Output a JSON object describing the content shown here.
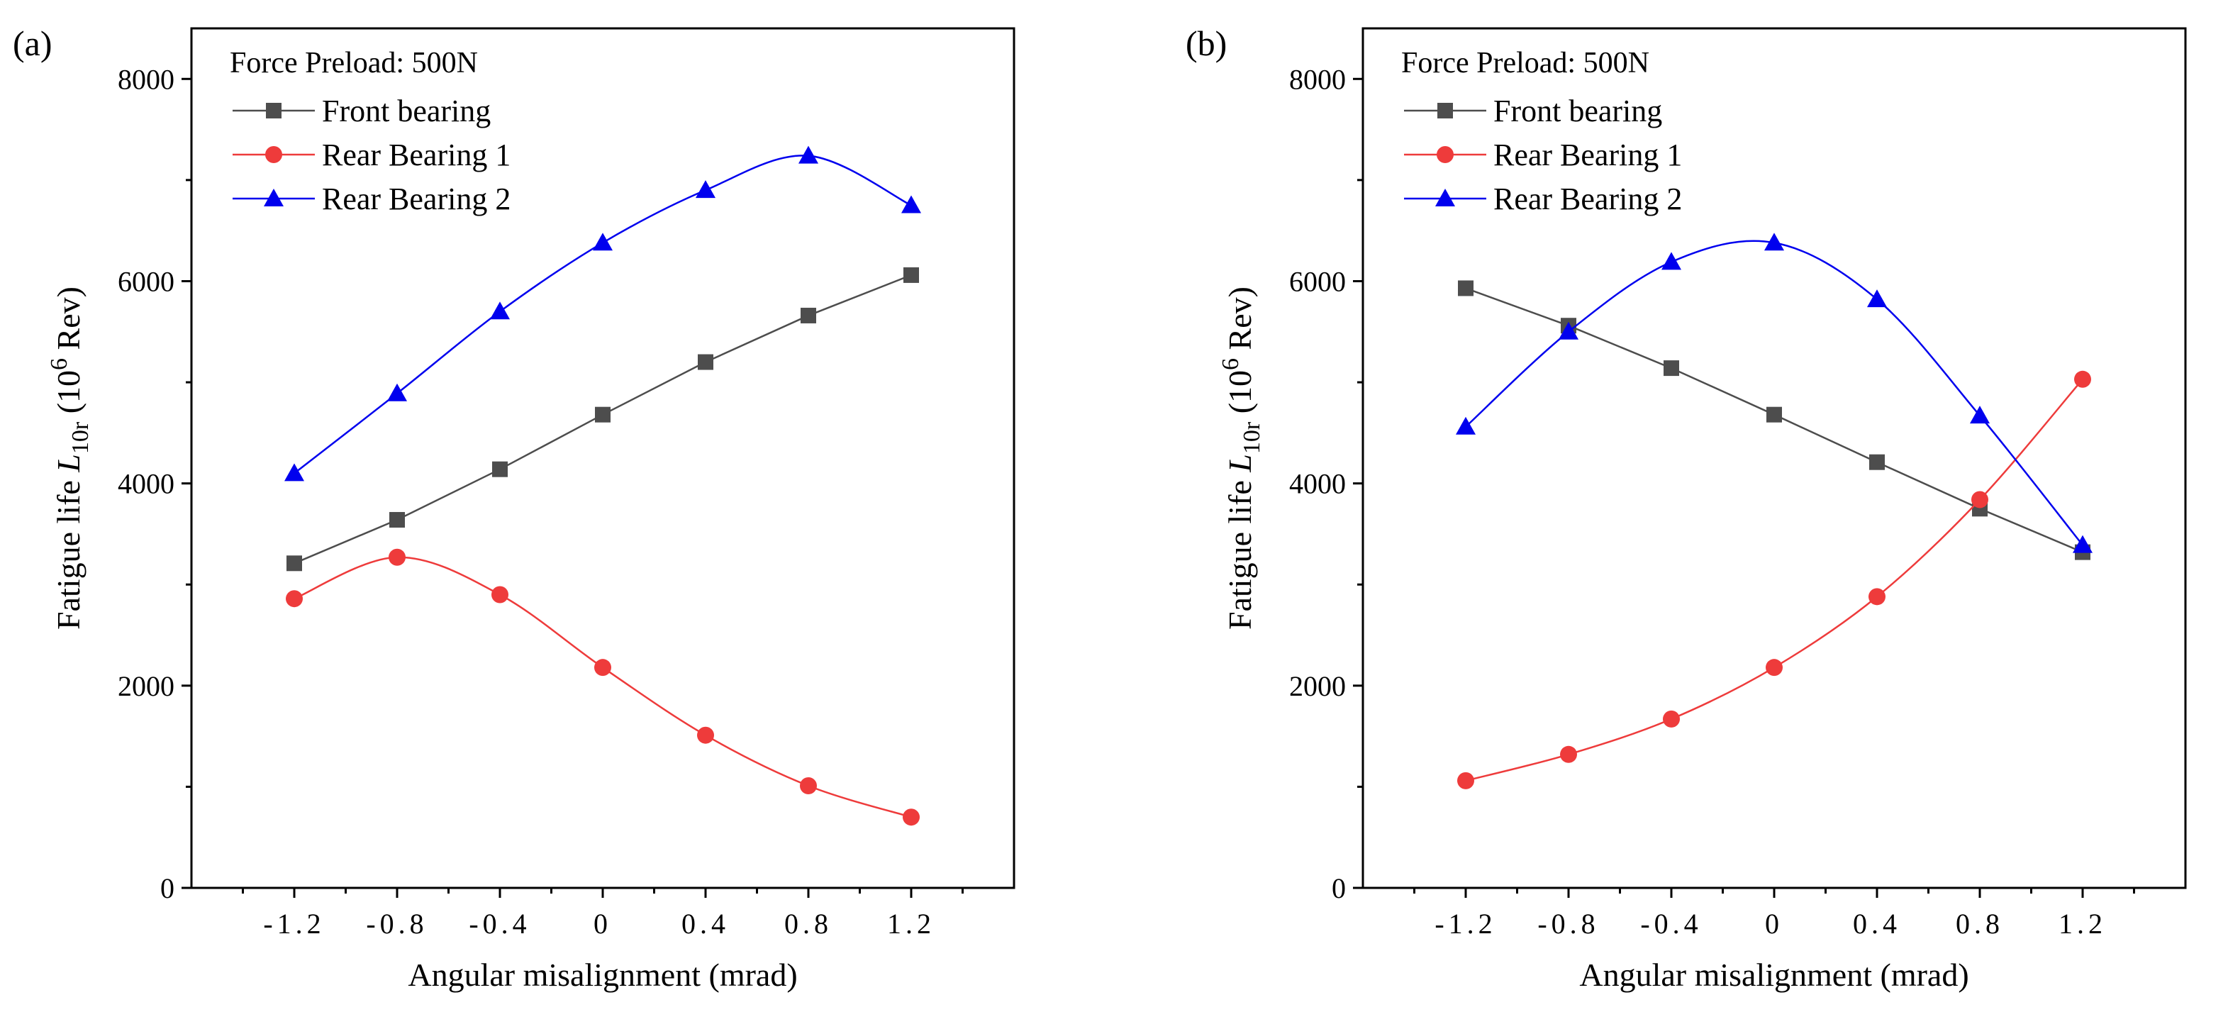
{
  "chart_data": [
    {
      "type": "line",
      "panel_tag": "(a)",
      "legend_title": "Force Preload: 500N",
      "xlabel": "Angular misalignment (mrad)",
      "ylabel": {
        "prefix": "Fatigue life ",
        "symbol": "L",
        "symbol_sub": "10r",
        "unit_open": " (10",
        "unit_sup": "6",
        "unit_close": " Rev)"
      },
      "xlim": [
        -1.6,
        1.6
      ],
      "ylim": [
        0,
        8500
      ],
      "x_ticks": [
        -1.2,
        -0.8,
        -0.4,
        0,
        0.4,
        0.8,
        1.2
      ],
      "x_tick_labels": [
        "-1.2",
        "-0.8",
        "-0.4",
        "0",
        "0.4",
        "0.8",
        "1.2"
      ],
      "y_ticks": [
        0,
        2000,
        4000,
        6000,
        8000
      ],
      "y_tick_labels": [
        "0",
        "2000",
        "4000",
        "6000",
        "8000"
      ],
      "grid": false,
      "legend_position": "top-left",
      "x": [
        -1.2,
        -0.8,
        -0.4,
        0,
        0.4,
        0.8,
        1.2
      ],
      "series": [
        {
          "name": "Front bearing",
          "color": "#4d4d4d",
          "marker": "square",
          "smooth": false,
          "values": [
            3210,
            3640,
            4140,
            4680,
            5200,
            5660,
            6060
          ]
        },
        {
          "name": "Rear Bearing 1",
          "color": "#ee3b3b",
          "marker": "circle",
          "smooth": true,
          "values": [
            2860,
            3270,
            2900,
            2180,
            1510,
            1010,
            700
          ]
        },
        {
          "name": "Rear Bearing 2",
          "color": "#0000ee",
          "marker": "triangle",
          "smooth": true,
          "values": [
            4100,
            4890,
            5700,
            6380,
            6900,
            7240,
            6750
          ]
        }
      ]
    },
    {
      "type": "line",
      "panel_tag": "(b)",
      "legend_title": "Force Preload: 500N",
      "xlabel": "Angular misalignment (mrad)",
      "ylabel": {
        "prefix": "Fatigue life ",
        "symbol": "L",
        "symbol_sub": "10r",
        "unit_open": " (10",
        "unit_sup": "6",
        "unit_close": " Rev)"
      },
      "xlim": [
        -1.6,
        1.6
      ],
      "ylim": [
        0,
        8500
      ],
      "x_ticks": [
        -1.2,
        -0.8,
        -0.4,
        0,
        0.4,
        0.8,
        1.2
      ],
      "x_tick_labels": [
        "-1.2",
        "-0.8",
        "-0.4",
        "0",
        "0.4",
        "0.8",
        "1.2"
      ],
      "y_ticks": [
        0,
        2000,
        4000,
        6000,
        8000
      ],
      "y_tick_labels": [
        "0",
        "2000",
        "4000",
        "6000",
        "8000"
      ],
      "grid": false,
      "legend_position": "top-left",
      "x": [
        -1.2,
        -0.8,
        -0.4,
        0,
        0.4,
        0.8,
        1.2
      ],
      "series": [
        {
          "name": "Front bearing",
          "color": "#4d4d4d",
          "marker": "square",
          "smooth": false,
          "values": [
            5930,
            5560,
            5140,
            4680,
            4210,
            3750,
            3320
          ]
        },
        {
          "name": "Rear Bearing 1",
          "color": "#ee3b3b",
          "marker": "circle",
          "smooth": true,
          "values": [
            1060,
            1320,
            1670,
            2180,
            2880,
            3840,
            5030
          ]
        },
        {
          "name": "Rear Bearing 2",
          "color": "#0000ee",
          "marker": "triangle",
          "smooth": true,
          "values": [
            4560,
            5500,
            6190,
            6380,
            5820,
            4670,
            3390
          ]
        }
      ]
    }
  ]
}
